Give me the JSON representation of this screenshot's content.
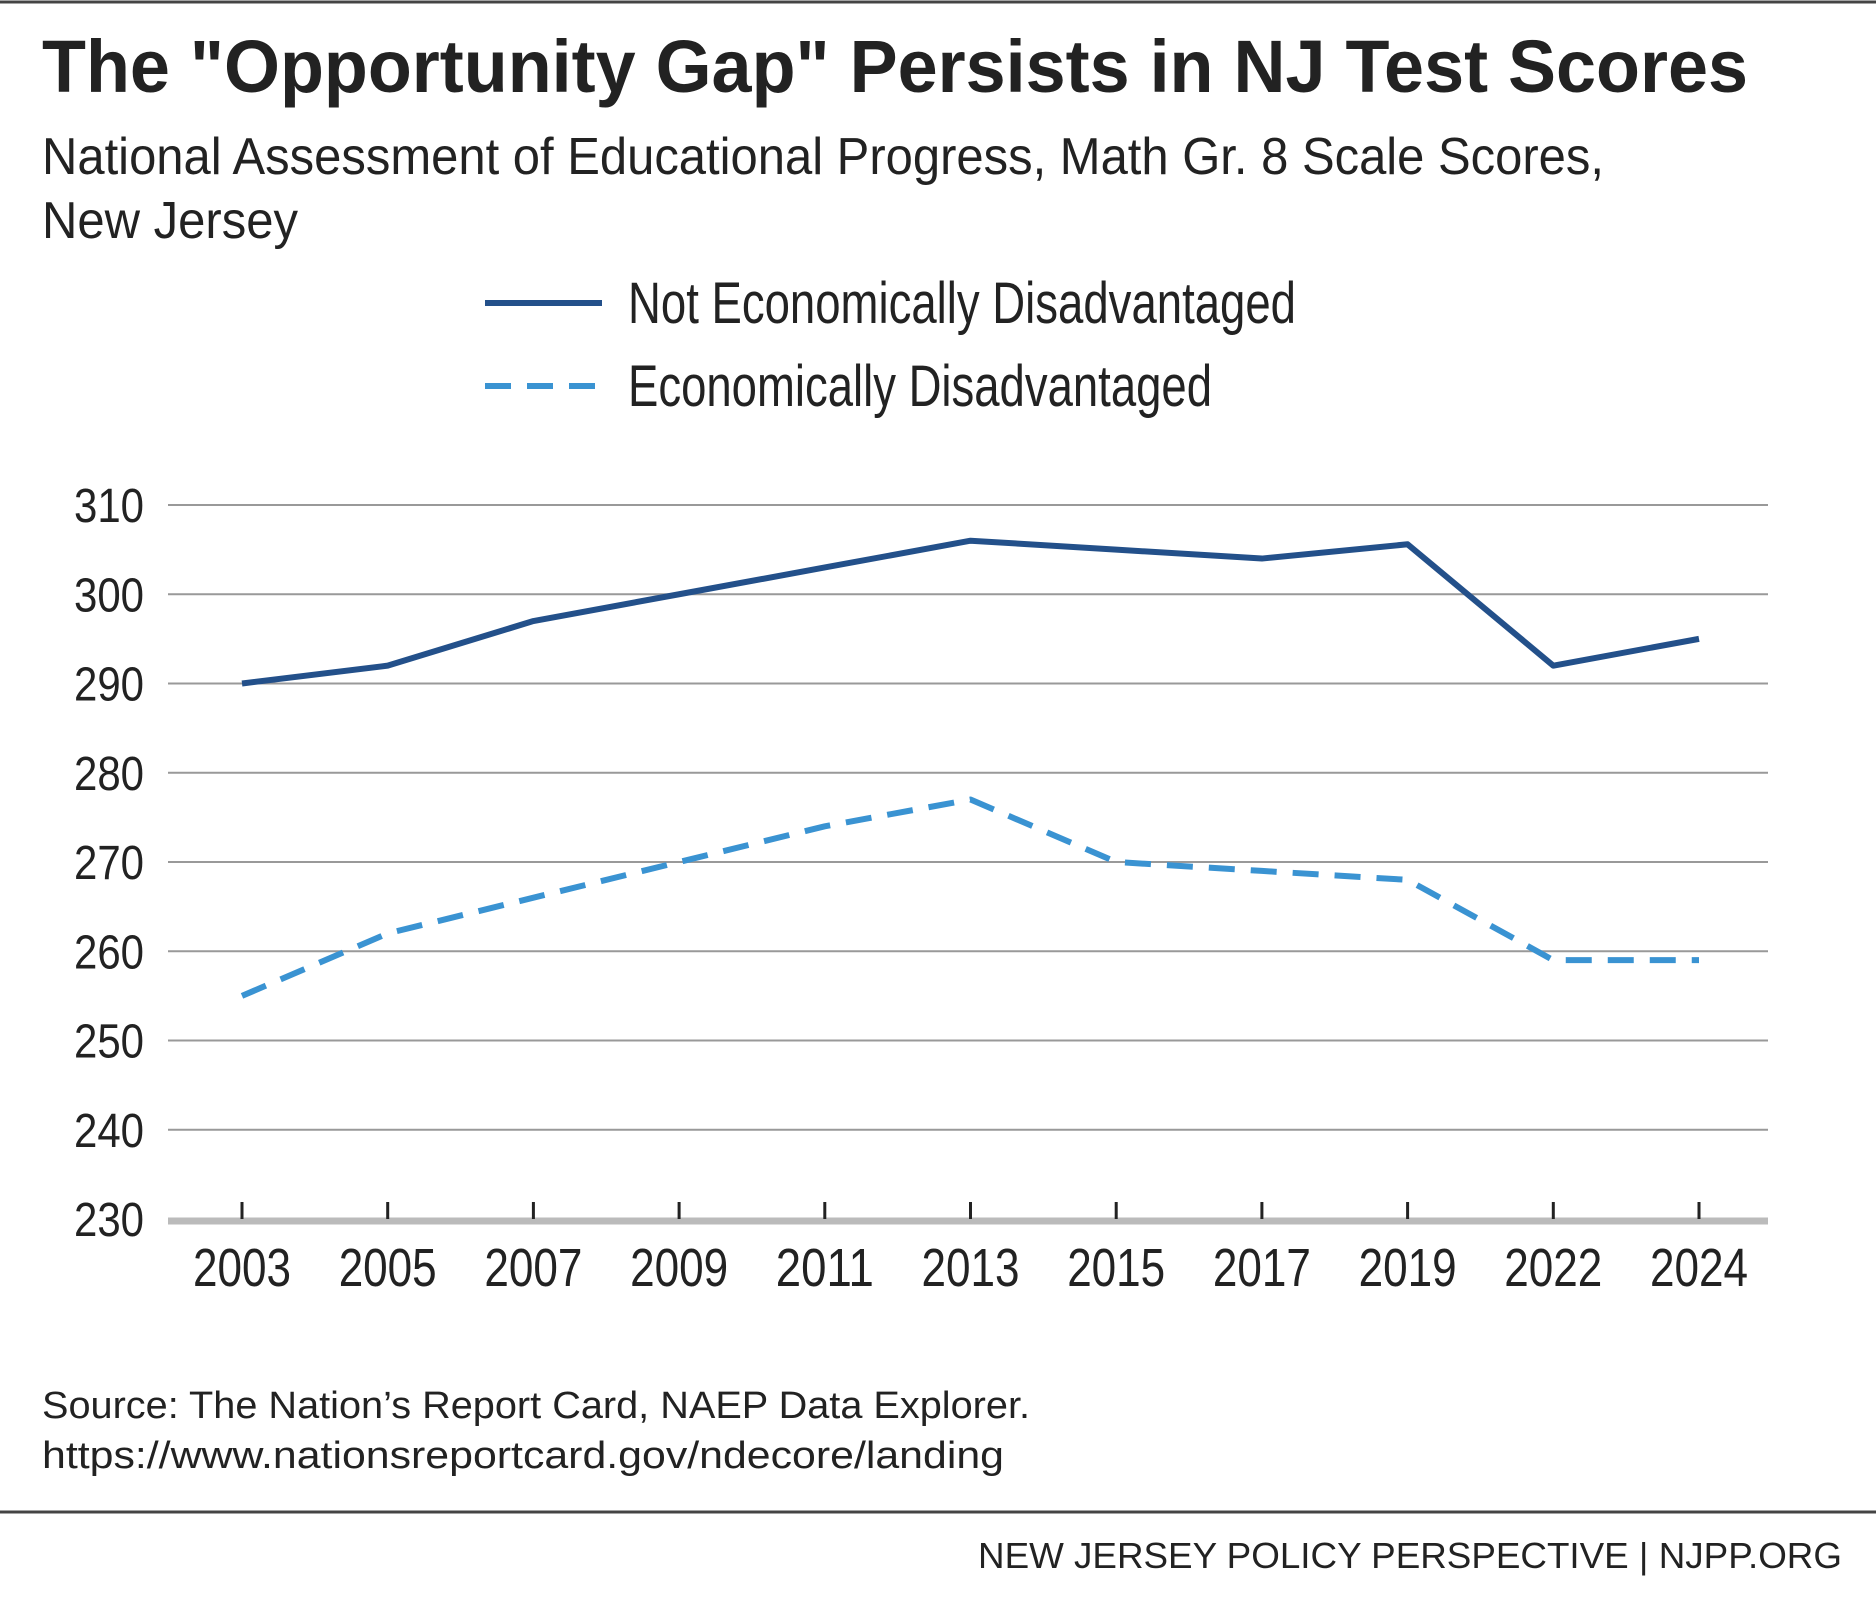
{
  "chart_data": {
    "type": "line",
    "title": "The \"Opportunity Gap\" Persists in NJ Test Scores",
    "subtitle": [
      "National Assessment of Educational Progress, Math Gr. 8 Scale Scores,",
      "New Jersey"
    ],
    "categories": [
      "2003",
      "2005",
      "2007",
      "2009",
      "2011",
      "2013",
      "2015",
      "2017",
      "2019",
      "2022",
      "2024"
    ],
    "series": [
      {
        "name": "Not Economically Disadvantaged",
        "color": "#23508a",
        "dash": false,
        "values": [
          290,
          292,
          297,
          300,
          303,
          306,
          305,
          304,
          305.6,
          292,
          295
        ]
      },
      {
        "name": "Economically Disadvantaged",
        "color": "#3a93d2",
        "dash": true,
        "values": [
          255,
          262,
          266,
          270,
          274,
          277,
          270,
          269,
          268,
          259,
          259
        ]
      }
    ],
    "ylim": [
      230,
      310
    ],
    "yticks": [
      230,
      240,
      250,
      260,
      270,
      280,
      290,
      300,
      310
    ],
    "grid": true,
    "source": [
      "Source: The Nation’s Report Card, NAEP Data Explorer.",
      "https://www.nationsreportcard.gov/ndecore/landing"
    ],
    "footer": "NEW JERSEY POLICY PERSPECTIVE | NJPP.ORG"
  }
}
